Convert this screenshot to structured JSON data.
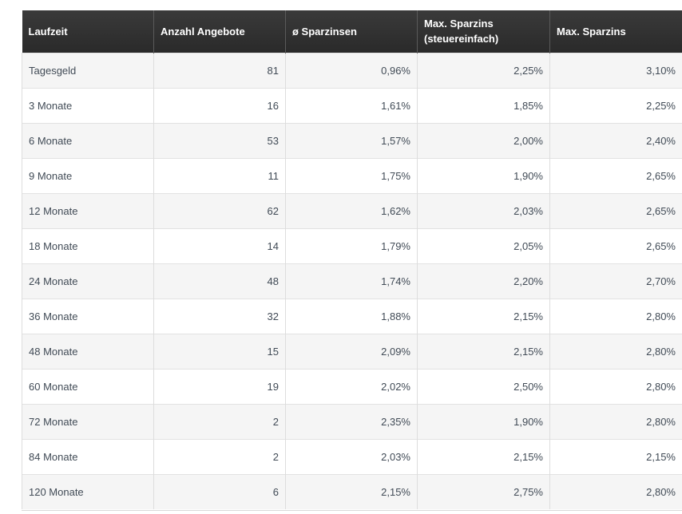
{
  "table": {
    "headers": [
      "Laufzeit",
      "Anzahl Angebote",
      "ø Sparzinsen",
      "Max. Sparzins\n(steuereinfach)",
      "Max. Sparzins"
    ],
    "rows": [
      [
        "Tagesgeld",
        "81",
        "0,96%",
        "2,25%",
        "3,10%"
      ],
      [
        "3 Monate",
        "16",
        "1,61%",
        "1,85%",
        "2,25%"
      ],
      [
        "6 Monate",
        "53",
        "1,57%",
        "2,00%",
        "2,40%"
      ],
      [
        "9 Monate",
        "11",
        "1,75%",
        "1,90%",
        "2,65%"
      ],
      [
        "12 Monate",
        "62",
        "1,62%",
        "2,03%",
        "2,65%"
      ],
      [
        "18 Monate",
        "14",
        "1,79%",
        "2,05%",
        "2,65%"
      ],
      [
        "24 Monate",
        "48",
        "1,74%",
        "2,20%",
        "2,70%"
      ],
      [
        "36 Monate",
        "32",
        "1,88%",
        "2,15%",
        "2,80%"
      ],
      [
        "48 Monate",
        "15",
        "2,09%",
        "2,15%",
        "2,80%"
      ],
      [
        "60 Monate",
        "19",
        "2,02%",
        "2,50%",
        "2,80%"
      ],
      [
        "72 Monate",
        "2",
        "2,35%",
        "1,90%",
        "2,80%"
      ],
      [
        "84 Monate",
        "2",
        "2,03%",
        "2,15%",
        "2,15%"
      ],
      [
        "120 Monate",
        "6",
        "2,15%",
        "2,75%",
        "2,80%"
      ]
    ]
  }
}
